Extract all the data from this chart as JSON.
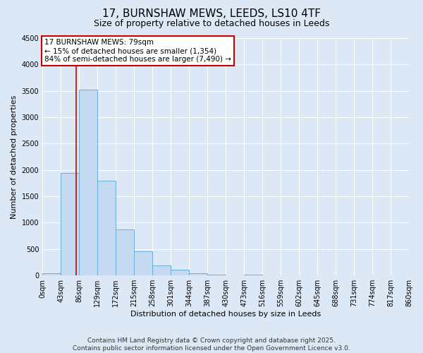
{
  "title": "17, BURNSHAW MEWS, LEEDS, LS10 4TF",
  "subtitle": "Size of property relative to detached houses in Leeds",
  "xlabel": "Distribution of detached houses by size in Leeds",
  "ylabel": "Number of detached properties",
  "bin_edges": [
    0,
    43,
    86,
    129,
    172,
    215,
    258,
    301,
    344,
    387,
    430,
    473,
    516,
    559,
    602,
    645,
    688,
    731,
    774,
    817,
    860
  ],
  "bin_labels": [
    "0sqm",
    "43sqm",
    "86sqm",
    "129sqm",
    "172sqm",
    "215sqm",
    "258sqm",
    "301sqm",
    "344sqm",
    "387sqm",
    "430sqm",
    "473sqm",
    "516sqm",
    "559sqm",
    "602sqm",
    "645sqm",
    "688sqm",
    "731sqm",
    "774sqm",
    "817sqm",
    "860sqm"
  ],
  "bar_heights": [
    40,
    1950,
    3520,
    1800,
    870,
    460,
    190,
    105,
    40,
    20,
    0,
    15,
    0,
    0,
    0,
    0,
    0,
    0,
    0,
    0
  ],
  "bar_color": "#c5d9f0",
  "bar_edge_color": "#6baed6",
  "ylim": [
    0,
    4500
  ],
  "yticks": [
    0,
    500,
    1000,
    1500,
    2000,
    2500,
    3000,
    3500,
    4000,
    4500
  ],
  "vline_x": 79,
  "vline_color": "#cc0000",
  "annotation_title": "17 BURNSHAW MEWS: 79sqm",
  "annotation_line1": "← 15% of detached houses are smaller (1,354)",
  "annotation_line2": "84% of semi-detached houses are larger (7,490) →",
  "annotation_box_color": "#ffffff",
  "annotation_box_edge_color": "#cc0000",
  "footnote1": "Contains HM Land Registry data © Crown copyright and database right 2025.",
  "footnote2": "Contains public sector information licensed under the Open Government Licence v3.0.",
  "bg_color": "#dce8f5",
  "plot_bg_color": "#dce8f5",
  "grid_color": "#ffffff",
  "title_fontsize": 11,
  "subtitle_fontsize": 9,
  "axis_label_fontsize": 8,
  "tick_fontsize": 7,
  "footnote_fontsize": 6.5
}
